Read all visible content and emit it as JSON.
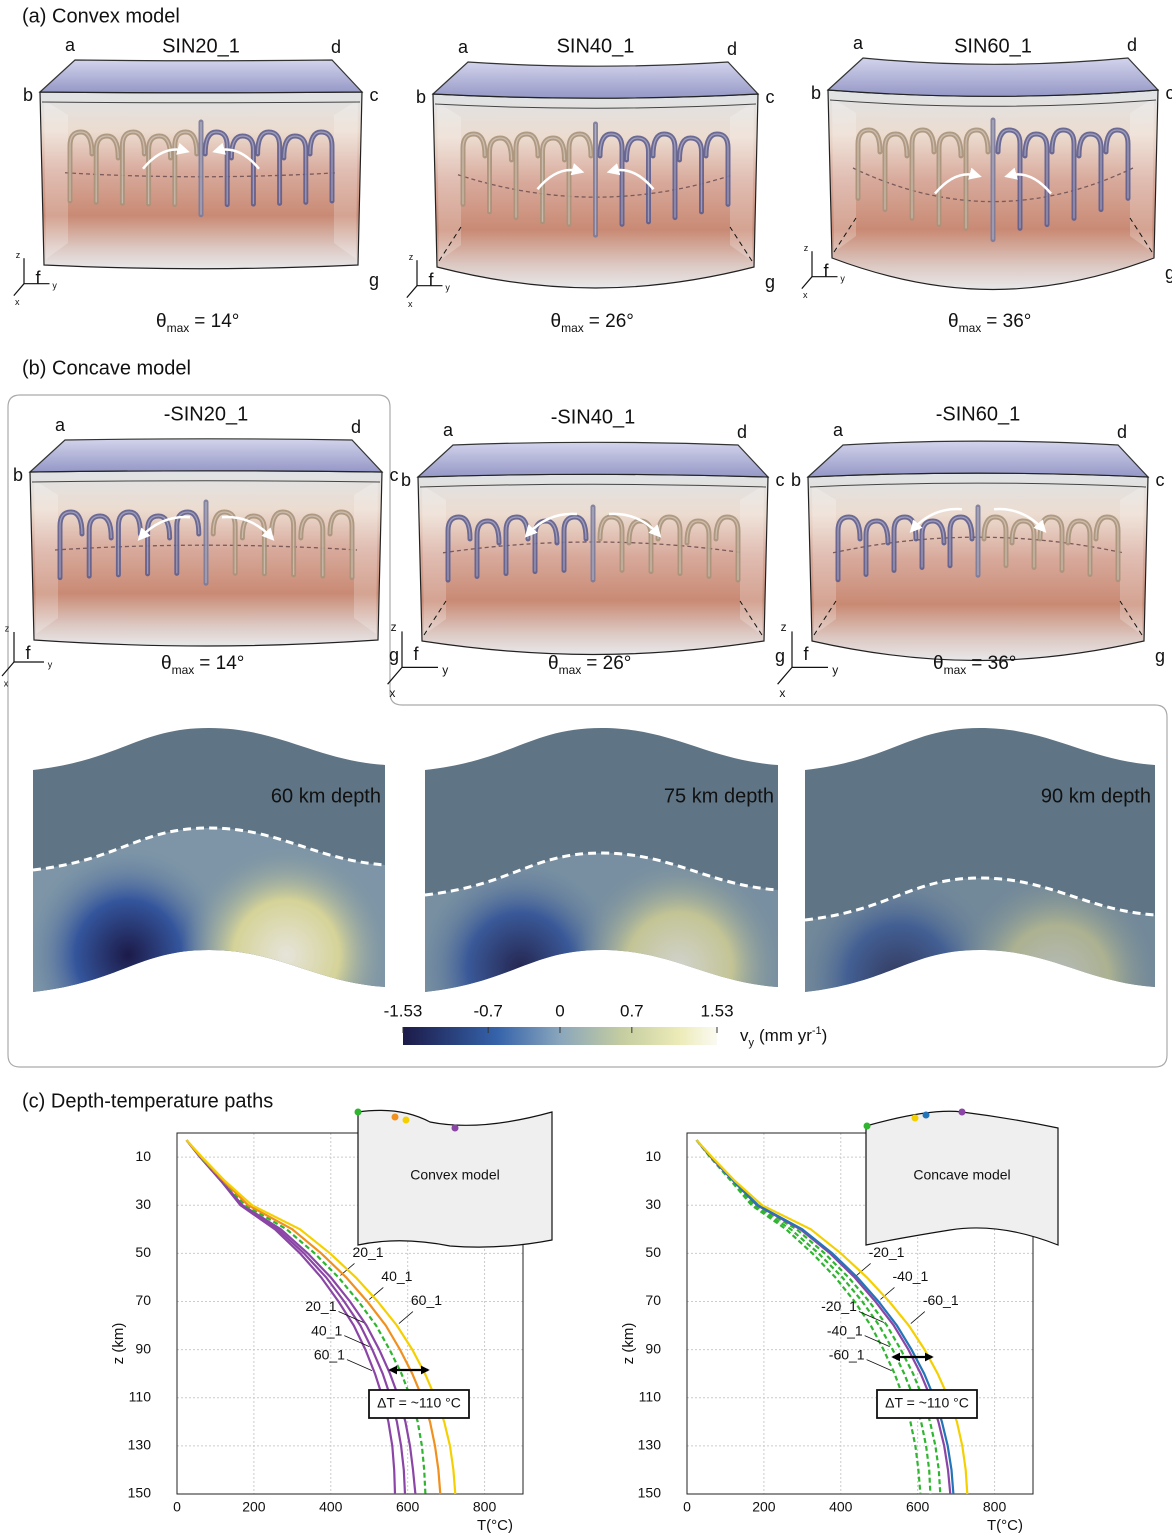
{
  "panel_a": {
    "label": "(a) Convex model",
    "models": [
      {
        "title": "SIN20_1",
        "theta": "θ",
        "theta_sub": "max",
        "theta_eq": "= 14°"
      },
      {
        "title": "SIN40_1",
        "theta": "θ",
        "theta_sub": "max",
        "theta_eq": "= 26°"
      },
      {
        "title": "SIN60_1",
        "theta": "θ",
        "theta_sub": "max",
        "theta_eq": "= 36°"
      }
    ]
  },
  "panel_b": {
    "label": "(b) Concave model",
    "models": [
      {
        "title": "-SIN20_1",
        "theta": "θ",
        "theta_sub": "max",
        "theta_eq": "= 14°"
      },
      {
        "title": "-SIN40_1",
        "theta": "θ",
        "theta_sub": "max",
        "theta_eq": "= 26°"
      },
      {
        "title": "-SIN60_1",
        "theta": "θ",
        "theta_sub": "max",
        "theta_eq": "= 36°"
      }
    ],
    "depth_maps": [
      {
        "label": "60 km depth"
      },
      {
        "label": "75 km depth"
      },
      {
        "label": "90 km depth"
      }
    ],
    "colorbar": {
      "lim": [
        -1.53,
        1.53
      ],
      "ticks": [
        -1.53,
        -0.7,
        0,
        0.7,
        1.53
      ],
      "label": "v",
      "label_sub": "y",
      "label_unit": "(mm yr",
      "label_sup": "-1",
      "label_close": ")"
    }
  },
  "box_labels": {
    "a": "a",
    "b": "b",
    "c": "c",
    "d": "d",
    "f": "f",
    "g": "g",
    "x": "x",
    "y": "y",
    "z": "z"
  },
  "panel_c": {
    "label": "(c) Depth-temperature paths"
  },
  "chart_data": [
    {
      "type": "line",
      "y_label": "z (km)",
      "x_label": "T(°C)",
      "xlim": [
        0,
        900
      ],
      "ylim": [
        0,
        150
      ],
      "y_inverted": true,
      "xticks": [
        0,
        200,
        400,
        600,
        800
      ],
      "yticks": [
        10,
        30,
        50,
        70,
        90,
        110,
        130,
        150
      ],
      "grid": true,
      "inset_label": "Convex model",
      "annotation": "ΔT = ~110 °C",
      "y": [
        3,
        10,
        20,
        30,
        40,
        50,
        60,
        70,
        80,
        90,
        100,
        110,
        120,
        130,
        140,
        150
      ],
      "series": [
        {
          "name": "60_1",
          "color": "#8b45a6",
          "dashed": false,
          "x": [
            25,
            60,
            115,
            165,
            255,
            320,
            375,
            420,
            460,
            490,
            515,
            535,
            550,
            560,
            565,
            567
          ]
        },
        {
          "name": "40_1",
          "color": "#8b45a6",
          "dashed": false,
          "x": [
            25,
            60,
            115,
            167,
            262,
            330,
            388,
            435,
            477,
            508,
            535,
            556,
            572,
            583,
            590,
            593
          ]
        },
        {
          "name": "20_1",
          "color": "#8b45a6",
          "dashed": false,
          "x": [
            25,
            60,
            116,
            170,
            270,
            340,
            400,
            450,
            493,
            526,
            554,
            577,
            594,
            606,
            614,
            620
          ]
        },
        {
          "name": "20_1",
          "color": "#2fb52f",
          "dashed": true,
          "x": [
            25,
            62,
            120,
            178,
            285,
            358,
            420,
            472,
            518,
            553,
            584,
            608,
            626,
            637,
            643,
            646
          ]
        },
        {
          "name": "40_1",
          "color": "#f0901e",
          "dashed": false,
          "x": [
            25,
            63,
            122,
            185,
            300,
            375,
            440,
            495,
            543,
            580,
            612,
            638,
            658,
            671,
            680,
            685
          ]
        },
        {
          "name": "60_1",
          "color": "#f5d000",
          "dashed": false,
          "x": [
            25,
            65,
            125,
            195,
            320,
            398,
            465,
            522,
            572,
            612,
            645,
            672,
            695,
            710,
            719,
            724
          ]
        }
      ]
    },
    {
      "type": "line",
      "y_label": "z (km)",
      "x_label": "T(°C)",
      "xlim": [
        0,
        900
      ],
      "ylim": [
        0,
        150
      ],
      "y_inverted": true,
      "xticks": [
        0,
        200,
        400,
        600,
        800
      ],
      "yticks": [
        10,
        30,
        50,
        70,
        90,
        110,
        130,
        150
      ],
      "grid": true,
      "inset_label": "Concave model",
      "annotation": "ΔT = ~110 °C",
      "y": [
        3,
        10,
        20,
        30,
        40,
        50,
        60,
        70,
        80,
        90,
        100,
        110,
        120,
        130,
        140,
        150
      ],
      "series": [
        {
          "name": "-60_1",
          "color": "#2fb52f",
          "dashed": true,
          "x": [
            25,
            60,
            115,
            168,
            258,
            326,
            386,
            436,
            478,
            511,
            540,
            563,
            581,
            594,
            602,
            607
          ]
        },
        {
          "name": "-40_1",
          "color": "#2fb52f",
          "dashed": true,
          "x": [
            25,
            61,
            117,
            172,
            270,
            342,
            404,
            456,
            500,
            535,
            565,
            590,
            609,
            622,
            630,
            633
          ]
        },
        {
          "name": "-20_1",
          "color": "#2fb52f",
          "dashed": true,
          "x": [
            25,
            62,
            119,
            178,
            285,
            358,
            420,
            474,
            520,
            556,
            588,
            613,
            632,
            646,
            655,
            659
          ]
        },
        {
          "name": "-20_1",
          "color": "#8b45a6",
          "dashed": false,
          "x": [
            25,
            62,
            121,
            182,
            295,
            372,
            436,
            490,
            538,
            576,
            608,
            634,
            654,
            669,
            679,
            685
          ]
        },
        {
          "name": "-40_1",
          "color": "#2474b8",
          "dashed": false,
          "x": [
            25,
            63,
            122,
            185,
            300,
            378,
            443,
            498,
            546,
            584,
            617,
            643,
            663,
            678,
            688,
            693
          ]
        },
        {
          "name": "-60_1",
          "color": "#f5d000",
          "dashed": false,
          "x": [
            25,
            65,
            125,
            195,
            322,
            400,
            468,
            526,
            577,
            618,
            652,
            680,
            702,
            716,
            725,
            729
          ]
        }
      ]
    }
  ]
}
